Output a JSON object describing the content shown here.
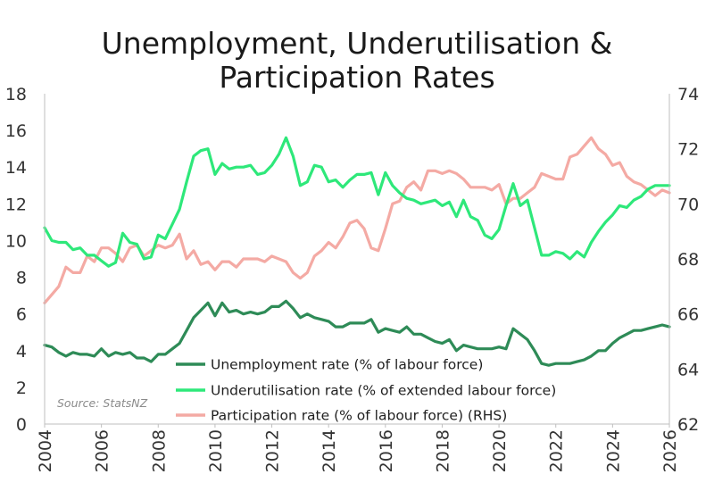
{
  "title_line1": "Unemployment, Underutilisation &",
  "title_line2": "Participation Rates",
  "source": "Source: StatsNZ",
  "chart_data": {
    "type": "line",
    "x_ticks": [
      "2004",
      "2006",
      "2008",
      "2010",
      "2012",
      "2014",
      "2016",
      "2018",
      "2020",
      "2022",
      "2024",
      "2026"
    ],
    "xlim": [
      2004,
      2026
    ],
    "ylim": [
      0,
      18
    ],
    "y_ticks": [
      0,
      2,
      4,
      6,
      8,
      10,
      12,
      14,
      16,
      18
    ],
    "y2lim": [
      62,
      74
    ],
    "y2_ticks": [
      62,
      64,
      66,
      68,
      70,
      72,
      74
    ],
    "legend_position": "bottom-center",
    "grid": false,
    "series": [
      {
        "name": "Unemployment rate (% of labour force)",
        "axis": "left",
        "color": "#2e8b57",
        "x": [
          2004,
          2004.25,
          2004.5,
          2004.75,
          2005,
          2005.25,
          2005.5,
          2005.75,
          2006,
          2006.25,
          2006.5,
          2006.75,
          2007,
          2007.25,
          2007.5,
          2007.75,
          2008,
          2008.25,
          2008.5,
          2008.75,
          2009,
          2009.25,
          2009.5,
          2009.75,
          2010,
          2010.25,
          2010.5,
          2010.75,
          2011,
          2011.25,
          2011.5,
          2011.75,
          2012,
          2012.25,
          2012.5,
          2012.75,
          2013,
          2013.25,
          2013.5,
          2013.75,
          2014,
          2014.25,
          2014.5,
          2014.75,
          2015,
          2015.25,
          2015.5,
          2015.75,
          2016,
          2016.25,
          2016.5,
          2016.75,
          2017,
          2017.25,
          2017.5,
          2017.75,
          2018,
          2018.25,
          2018.5,
          2018.75,
          2019,
          2019.25,
          2019.5,
          2019.75,
          2020,
          2020.25,
          2020.5,
          2020.75,
          2021,
          2021.25,
          2021.5,
          2021.75,
          2022,
          2022.25,
          2022.5,
          2022.75,
          2023,
          2023.25,
          2023.5,
          2023.75,
          2024,
          2024.25,
          2024.5,
          2024.75,
          2025,
          2025.25,
          2025.5,
          2025.75,
          2026
        ],
        "values": [
          4.3,
          4.2,
          3.9,
          3.7,
          3.9,
          3.8,
          3.8,
          3.7,
          4.1,
          3.7,
          3.9,
          3.8,
          3.9,
          3.6,
          3.6,
          3.4,
          3.8,
          3.8,
          4.1,
          4.4,
          5.1,
          5.8,
          6.2,
          6.6,
          5.9,
          6.6,
          6.1,
          6.2,
          6.0,
          6.1,
          6.0,
          6.1,
          6.4,
          6.4,
          6.7,
          6.3,
          5.8,
          6.0,
          5.8,
          5.7,
          5.6,
          5.3,
          5.3,
          5.5,
          5.5,
          5.5,
          5.7,
          5.0,
          5.2,
          5.1,
          5.0,
          5.3,
          4.9,
          4.9,
          4.7,
          4.5,
          4.4,
          4.6,
          4.0,
          4.3,
          4.2,
          4.1,
          4.1,
          4.1,
          4.2,
          4.1,
          5.2,
          4.9,
          4.6,
          4.0,
          3.3,
          3.2,
          3.3,
          3.3,
          3.3,
          3.4,
          3.5,
          3.7,
          4.0,
          4.0,
          4.4,
          4.7,
          4.9,
          5.1,
          5.1,
          5.2,
          5.3,
          5.4,
          5.3
        ]
      },
      {
        "name": "Underutilisation rate (% of extended labour force)",
        "axis": "left",
        "color": "#2ee87a",
        "x": [
          2004,
          2004.25,
          2004.5,
          2004.75,
          2005,
          2005.25,
          2005.5,
          2005.75,
          2006,
          2006.25,
          2006.5,
          2006.75,
          2007,
          2007.25,
          2007.5,
          2007.75,
          2008,
          2008.25,
          2008.5,
          2008.75,
          2009,
          2009.25,
          2009.5,
          2009.75,
          2010,
          2010.25,
          2010.5,
          2010.75,
          2011,
          2011.25,
          2011.5,
          2011.75,
          2012,
          2012.25,
          2012.5,
          2012.75,
          2013,
          2013.25,
          2013.5,
          2013.75,
          2014,
          2014.25,
          2014.5,
          2014.75,
          2015,
          2015.25,
          2015.5,
          2015.75,
          2016,
          2016.25,
          2016.5,
          2016.75,
          2017,
          2017.25,
          2017.5,
          2017.75,
          2018,
          2018.25,
          2018.5,
          2018.75,
          2019,
          2019.25,
          2019.5,
          2019.75,
          2020,
          2020.25,
          2020.5,
          2020.75,
          2021,
          2021.25,
          2021.5,
          2021.75,
          2022,
          2022.25,
          2022.5,
          2022.75,
          2023,
          2023.25,
          2023.5,
          2023.75,
          2024,
          2024.25,
          2024.5,
          2024.75,
          2025,
          2025.25,
          2025.5,
          2025.75,
          2026
        ],
        "values": [
          10.7,
          10.0,
          9.9,
          9.9,
          9.5,
          9.6,
          9.2,
          9.2,
          8.9,
          8.6,
          8.8,
          10.4,
          9.9,
          9.8,
          9.0,
          9.1,
          10.3,
          10.1,
          10.9,
          11.7,
          13.2,
          14.6,
          14.9,
          15.0,
          13.6,
          14.2,
          13.9,
          14.0,
          14.0,
          14.1,
          13.6,
          13.7,
          14.1,
          14.7,
          15.6,
          14.6,
          13.0,
          13.2,
          14.1,
          14.0,
          13.2,
          13.3,
          12.9,
          13.3,
          13.6,
          13.6,
          13.7,
          12.5,
          13.7,
          13.0,
          12.6,
          12.3,
          12.2,
          12.0,
          12.1,
          12.2,
          11.9,
          12.1,
          11.3,
          12.2,
          11.3,
          11.1,
          10.3,
          10.1,
          10.6,
          11.9,
          13.1,
          11.9,
          12.2,
          10.7,
          9.2,
          9.2,
          9.4,
          9.3,
          9.0,
          9.4,
          9.1,
          9.9,
          10.5,
          11.0,
          11.4,
          11.9,
          11.8,
          12.2,
          12.4,
          12.8,
          13.0,
          13.0,
          13.0
        ]
      },
      {
        "name": "Participation rate (% of labour force) (RHS)",
        "axis": "right",
        "color": "#f4aaa4",
        "x": [
          2004,
          2004.25,
          2004.5,
          2004.75,
          2005,
          2005.25,
          2005.5,
          2005.75,
          2006,
          2006.25,
          2006.5,
          2006.75,
          2007,
          2007.25,
          2007.5,
          2007.75,
          2008,
          2008.25,
          2008.5,
          2008.75,
          2009,
          2009.25,
          2009.5,
          2009.75,
          2010,
          2010.25,
          2010.5,
          2010.75,
          2011,
          2011.25,
          2011.5,
          2011.75,
          2012,
          2012.25,
          2012.5,
          2012.75,
          2013,
          2013.25,
          2013.5,
          2013.75,
          2014,
          2014.25,
          2014.5,
          2014.75,
          2015,
          2015.25,
          2015.5,
          2015.75,
          2016,
          2016.25,
          2016.5,
          2016.75,
          2017,
          2017.25,
          2017.5,
          2017.75,
          2018,
          2018.25,
          2018.5,
          2018.75,
          2019,
          2019.25,
          2019.5,
          2019.75,
          2020,
          2020.25,
          2020.5,
          2020.75,
          2021,
          2021.25,
          2021.5,
          2021.75,
          2022,
          2022.25,
          2022.5,
          2022.75,
          2023,
          2023.25,
          2023.5,
          2023.75,
          2024,
          2024.25,
          2024.5,
          2024.75,
          2025,
          2025.25,
          2025.5,
          2025.75,
          2026
        ],
        "values": [
          66.4,
          66.7,
          67.0,
          67.7,
          67.5,
          67.5,
          68.1,
          67.9,
          68.4,
          68.4,
          68.2,
          67.9,
          68.4,
          68.5,
          68.1,
          68.3,
          68.5,
          68.4,
          68.5,
          68.9,
          68.0,
          68.3,
          67.8,
          67.9,
          67.6,
          67.9,
          67.9,
          67.7,
          68.0,
          68.0,
          68.0,
          67.9,
          68.1,
          68.0,
          67.9,
          67.5,
          67.3,
          67.5,
          68.1,
          68.3,
          68.6,
          68.4,
          68.8,
          69.3,
          69.4,
          69.1,
          68.4,
          68.3,
          69.1,
          70.0,
          70.1,
          70.6,
          70.8,
          70.5,
          71.2,
          71.2,
          71.1,
          71.2,
          71.1,
          70.9,
          70.6,
          70.6,
          70.6,
          70.5,
          70.7,
          70.0,
          70.2,
          70.2,
          70.4,
          70.6,
          71.1,
          71.0,
          70.9,
          70.9,
          71.7,
          71.8,
          72.1,
          72.4,
          72.0,
          71.8,
          71.4,
          71.5,
          71.0,
          70.8,
          70.7,
          70.5,
          70.3,
          70.5,
          70.4
        ]
      }
    ]
  }
}
